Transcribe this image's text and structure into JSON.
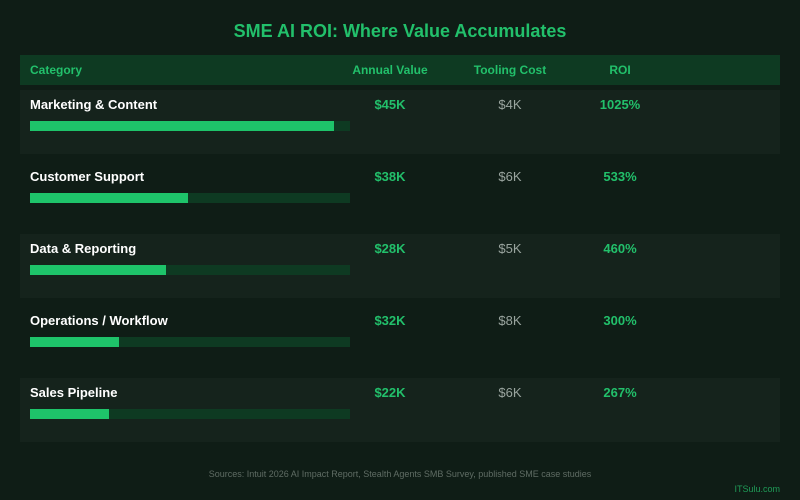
{
  "title": "SME AI ROI: Where Value Accumulates",
  "headers": {
    "category": "Category",
    "annual_value": "Annual Value",
    "tooling_cost": "Tooling Cost",
    "roi": "ROI"
  },
  "footer": {
    "sources": "Sources: Intuit 2026 AI Impact Report, Stealth Agents SMB Survey, published SME case studies",
    "brand": "ITSulu.com"
  },
  "colors": {
    "accent": "#22c06b",
    "bar_fill": "#1ec46a",
    "bar_track": "#0e3a22",
    "background": "#0f1d16"
  },
  "chart_data": {
    "type": "bar",
    "orientation": "horizontal",
    "title": "SME AI ROI: Where Value Accumulates",
    "categories": [
      "Marketing & Content",
      "Customer Support",
      "Data & Reporting",
      "Operations / Workflow",
      "Sales Pipeline"
    ],
    "annual_value_labels": [
      "$45K",
      "$38K",
      "$28K",
      "$32K",
      "$22K"
    ],
    "tooling_cost_labels": [
      "$4K",
      "$6K",
      "$5K",
      "$8K",
      "$6K"
    ],
    "roi_labels": [
      "1025%",
      "533%",
      "460%",
      "300%",
      "267%"
    ],
    "roi_values": [
      1025,
      533,
      460,
      300,
      267
    ],
    "xlim": [
      0,
      1080
    ],
    "grid": false
  }
}
